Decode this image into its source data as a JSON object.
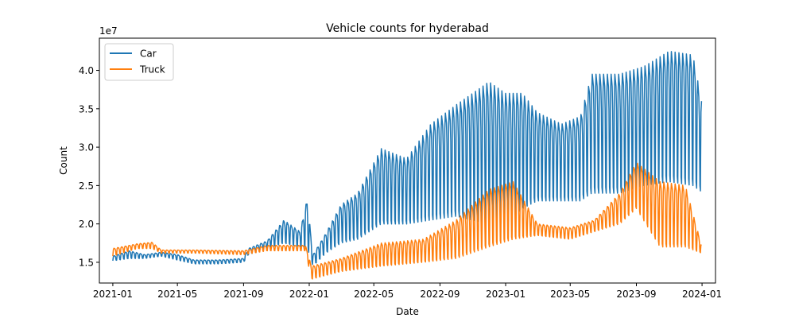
{
  "chart_data": {
    "type": "line",
    "title": "Vehicle counts for hyderabad",
    "xlabel": "Date",
    "ylabel": "Count",
    "y_scale_label": "1e7",
    "y_scale": 10000000,
    "xlim": [
      "2020-12-07",
      "2024-01-26"
    ],
    "ylim": [
      1.23,
      4.42
    ],
    "x_ticks": [
      {
        "date": "2021-01-01",
        "label": "2021-01"
      },
      {
        "date": "2021-05-01",
        "label": "2021-05"
      },
      {
        "date": "2021-09-01",
        "label": "2021-09"
      },
      {
        "date": "2022-01-01",
        "label": "2022-01"
      },
      {
        "date": "2022-05-01",
        "label": "2022-05"
      },
      {
        "date": "2022-09-01",
        "label": "2022-09"
      },
      {
        "date": "2023-01-01",
        "label": "2023-01"
      },
      {
        "date": "2023-05-01",
        "label": "2023-05"
      },
      {
        "date": "2023-09-01",
        "label": "2023-09"
      },
      {
        "date": "2024-01-01",
        "label": "2024-01"
      }
    ],
    "y_ticks": [
      {
        "value": 1.5,
        "label": "1.5"
      },
      {
        "value": 2.0,
        "label": "2.0"
      },
      {
        "value": 2.5,
        "label": "2.5"
      },
      {
        "value": 3.0,
        "label": "3.0"
      },
      {
        "value": 3.5,
        "label": "3.5"
      },
      {
        "value": 4.0,
        "label": "4.0"
      }
    ],
    "legend_position": "top-left",
    "grid": false,
    "series": [
      {
        "name": "Car",
        "color": "#1f77b4",
        "weekly_cycle": true,
        "envelope": [
          {
            "date": "2021-01-01",
            "low": 1.52,
            "high": 1.58
          },
          {
            "date": "2021-02-01",
            "low": 1.55,
            "high": 1.65
          },
          {
            "date": "2021-03-01",
            "low": 1.55,
            "high": 1.6
          },
          {
            "date": "2021-04-01",
            "low": 1.58,
            "high": 1.63
          },
          {
            "date": "2021-05-01",
            "low": 1.53,
            "high": 1.6
          },
          {
            "date": "2021-06-01",
            "low": 1.48,
            "high": 1.53
          },
          {
            "date": "2021-07-15",
            "low": 1.48,
            "high": 1.53
          },
          {
            "date": "2021-09-01",
            "low": 1.5,
            "high": 1.55
          },
          {
            "date": "2021-09-10",
            "low": 1.6,
            "high": 1.68
          },
          {
            "date": "2021-10-15",
            "low": 1.68,
            "high": 1.78
          },
          {
            "date": "2021-11-15",
            "low": 1.75,
            "high": 2.05
          },
          {
            "date": "2021-12-15",
            "low": 1.7,
            "high": 1.9
          },
          {
            "date": "2021-12-28",
            "low": 1.7,
            "high": 2.32
          },
          {
            "date": "2022-01-08",
            "low": 1.45,
            "high": 1.6
          },
          {
            "date": "2022-02-01",
            "low": 1.62,
            "high": 1.88
          },
          {
            "date": "2022-03-01",
            "low": 1.75,
            "high": 2.25
          },
          {
            "date": "2022-04-01",
            "low": 1.8,
            "high": 2.4
          },
          {
            "date": "2022-05-15",
            "low": 2.0,
            "high": 2.98
          },
          {
            "date": "2022-07-01",
            "low": 2.0,
            "high": 2.85
          },
          {
            "date": "2022-08-15",
            "low": 2.05,
            "high": 3.3
          },
          {
            "date": "2022-10-01",
            "low": 2.1,
            "high": 3.55
          },
          {
            "date": "2022-12-01",
            "low": 2.0,
            "high": 3.85
          },
          {
            "date": "2023-01-01",
            "low": 2.0,
            "high": 3.7
          },
          {
            "date": "2023-02-01",
            "low": 2.2,
            "high": 3.7
          },
          {
            "date": "2023-03-01",
            "low": 2.3,
            "high": 3.45
          },
          {
            "date": "2023-04-15",
            "low": 2.3,
            "high": 3.3
          },
          {
            "date": "2023-05-20",
            "low": 2.3,
            "high": 3.4
          },
          {
            "date": "2023-06-10",
            "low": 2.4,
            "high": 3.95
          },
          {
            "date": "2023-08-01",
            "low": 2.4,
            "high": 3.95
          },
          {
            "date": "2023-09-15",
            "low": 2.5,
            "high": 4.05
          },
          {
            "date": "2023-11-01",
            "low": 2.55,
            "high": 4.25
          },
          {
            "date": "2023-12-15",
            "low": 2.5,
            "high": 4.2
          },
          {
            "date": "2023-12-31",
            "low": 2.42,
            "high": 3.6
          }
        ]
      },
      {
        "name": "Truck",
        "color": "#ff7f0e",
        "weekly_cycle": true,
        "envelope": [
          {
            "date": "2021-01-01",
            "low": 1.58,
            "high": 1.68
          },
          {
            "date": "2021-02-15",
            "low": 1.68,
            "high": 1.74
          },
          {
            "date": "2021-03-15",
            "low": 1.68,
            "high": 1.76
          },
          {
            "date": "2021-04-01",
            "low": 1.62,
            "high": 1.66
          },
          {
            "date": "2021-06-01",
            "low": 1.62,
            "high": 1.66
          },
          {
            "date": "2021-09-01",
            "low": 1.6,
            "high": 1.65
          },
          {
            "date": "2021-10-15",
            "low": 1.65,
            "high": 1.72
          },
          {
            "date": "2021-12-25",
            "low": 1.65,
            "high": 1.72
          },
          {
            "date": "2022-01-05",
            "low": 1.28,
            "high": 1.45
          },
          {
            "date": "2022-03-01",
            "low": 1.38,
            "high": 1.55
          },
          {
            "date": "2022-05-15",
            "low": 1.45,
            "high": 1.75
          },
          {
            "date": "2022-08-01",
            "low": 1.5,
            "high": 1.8
          },
          {
            "date": "2022-10-01",
            "low": 1.55,
            "high": 2.05
          },
          {
            "date": "2022-12-01",
            "low": 1.7,
            "high": 2.45
          },
          {
            "date": "2023-01-15",
            "low": 1.8,
            "high": 2.55
          },
          {
            "date": "2023-03-01",
            "low": 1.85,
            "high": 2.0
          },
          {
            "date": "2023-05-01",
            "low": 1.8,
            "high": 1.95
          },
          {
            "date": "2023-06-15",
            "low": 1.9,
            "high": 2.05
          },
          {
            "date": "2023-08-01",
            "low": 2.0,
            "high": 2.4
          },
          {
            "date": "2023-09-01",
            "low": 2.2,
            "high": 2.8
          },
          {
            "date": "2023-10-15",
            "low": 1.7,
            "high": 2.55
          },
          {
            "date": "2023-12-01",
            "low": 1.7,
            "high": 2.5
          },
          {
            "date": "2023-12-31",
            "low": 1.62,
            "high": 1.72
          }
        ]
      }
    ]
  }
}
